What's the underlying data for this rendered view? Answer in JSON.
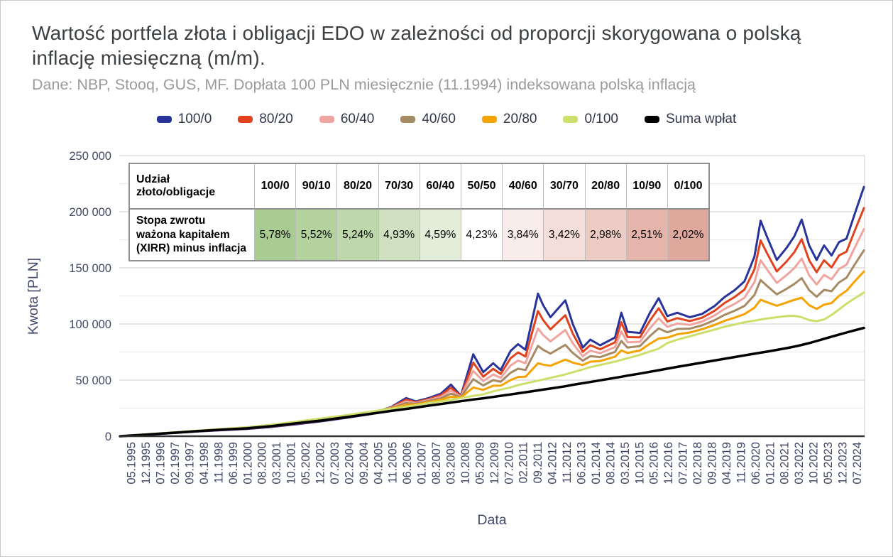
{
  "card": {
    "title": "Wartość portfela złota i obligacji EDO w zależności od proporcji skorygowana o polską inflację miesięczną (m/m).",
    "subtitle": "Dane: NBP, Stooq, GUS, MF. Dopłata 100 PLN miesięcznie (11.1994) indeksowana polską inflacją"
  },
  "colors": {
    "title_text": "#3c4043",
    "subtitle_text": "#9b9b9b",
    "axis_text": "#424867",
    "grid_major": "#cfcfcf",
    "grid_minor": "#e9e9e9",
    "axis_baseline": "#333333",
    "table_border_outer": "#8f8f8f",
    "table_border_inner": "#bdbdbd"
  },
  "legend": [
    {
      "label": "100/0",
      "color": "#28339c"
    },
    {
      "label": "80/20",
      "color": "#e2431e"
    },
    {
      "label": "60/40",
      "color": "#f0a4a0"
    },
    {
      "label": "40/60",
      "color": "#a68a64"
    },
    {
      "label": "20/80",
      "color": "#f5a300"
    },
    {
      "label": "0/100",
      "color": "#cede6b"
    },
    {
      "label": "Suma wpłat",
      "color": "#000000"
    }
  ],
  "table": {
    "header_label_line1": "Udział",
    "header_label_line2": "złoto/obligacje",
    "row_label_line1": "Stopa zwrotu",
    "row_label_line2": "ważona kapitałem",
    "row_label_line3": "(XIRR) minus inflacja",
    "columns": [
      "100/0",
      "90/10",
      "80/20",
      "70/30",
      "60/40",
      "50/50",
      "40/60",
      "30/70",
      "20/80",
      "10/90",
      "0/100"
    ],
    "values": [
      "5,78%",
      "5,52%",
      "5,24%",
      "4,93%",
      "4,59%",
      "4,23%",
      "3,84%",
      "3,42%",
      "2,98%",
      "2,51%",
      "2,02%"
    ],
    "cell_colors": [
      "#a9cc92",
      "#b3d29e",
      "#bed8ab",
      "#cfe1c0",
      "#e2edda",
      "#ffffff",
      "#f9edeb",
      "#f3ded9",
      "#edccc5",
      "#e5b4aa",
      "#dfa89d"
    ]
  },
  "axes": {
    "y_label": "Kwota [PLN]",
    "x_label": "Data",
    "y_ticks": [
      {
        "value": 0,
        "label": "0"
      },
      {
        "value": 50000,
        "label": "50 000"
      },
      {
        "value": 100000,
        "label": "100 000"
      },
      {
        "value": 150000,
        "label": "150 000"
      },
      {
        "value": 200000,
        "label": "200 000"
      },
      {
        "value": 250000,
        "label": "250 000"
      }
    ],
    "x_ticks": [
      "05.1995",
      "12.1995",
      "07.1996",
      "02.1997",
      "09.1997",
      "04.1998",
      "11.1998",
      "06.1999",
      "01.2000",
      "08.2000",
      "03.2001",
      "10.2001",
      "05.2002",
      "12.2002",
      "07.2003",
      "02.2004",
      "09.2004",
      "04.2005",
      "11.2005",
      "06.2006",
      "01.2007",
      "08.2007",
      "03.2008",
      "10.2008",
      "05.2009",
      "12.2009",
      "07.2010",
      "02.2011",
      "09.2011",
      "04.2012",
      "11.2012",
      "06.2013",
      "01.2014",
      "08.2014",
      "03.2015",
      "10.2015",
      "05.2016",
      "12.2016",
      "07.2017",
      "02.2018",
      "09.2018",
      "04.2019",
      "11.2019",
      "06.2020",
      "01.2021",
      "08.2021",
      "03.2022",
      "10.2022",
      "05.2023",
      "12.2023",
      "07.2024"
    ]
  },
  "chart_data": {
    "type": "line",
    "title": "Wartość portfela złota i obligacji EDO w zależności od proporcji skorygowana o polską inflację miesięczną (m/m).",
    "xlabel": "Data",
    "ylabel": "Kwota [PLN]",
    "xlim": [
      1994.87,
      2024.8
    ],
    "ylim": [
      0,
      250000
    ],
    "grid": "horizontal, major every 50000, minor every 25000",
    "legend_position": "top",
    "x_unit": "decimal year (monthly series 11.1994 - 2024)",
    "y_unit": "PLN",
    "x": [
      1994.9,
      1996,
      1997,
      1998,
      1999,
      2000,
      2001,
      2002,
      2003,
      2004,
      2005,
      2005.8,
      2006.4,
      2006.8,
      2007.3,
      2007.8,
      2008.2,
      2008.6,
      2009.1,
      2009.5,
      2009.9,
      2010.2,
      2010.6,
      2010.9,
      2011.2,
      2011.7,
      2011.9,
      2012.2,
      2012.8,
      2013.1,
      2013.5,
      2013.8,
      2014.2,
      2014.8,
      2015.05,
      2015.3,
      2015.8,
      2016.2,
      2016.55,
      2016.9,
      2017.3,
      2017.8,
      2018.3,
      2018.8,
      2019.2,
      2019.6,
      2020,
      2020.4,
      2020.65,
      2020.9,
      2021.3,
      2021.7,
      2022,
      2022.3,
      2022.6,
      2022.9,
      2023.2,
      2023.5,
      2023.8,
      2024.1,
      2024.4,
      2024.8
    ],
    "series": [
      {
        "name": "100/0",
        "color": "#28339c",
        "width": 3,
        "values": [
          0,
          1400,
          2800,
          4200,
          5400,
          6500,
          8300,
          10700,
          13300,
          16300,
          19800,
          26000,
          34000,
          31000,
          34000,
          38000,
          46000,
          36000,
          73000,
          57000,
          65000,
          59000,
          76000,
          82000,
          77000,
          127000,
          117000,
          106000,
          121000,
          100000,
          79000,
          86000,
          81000,
          88000,
          110000,
          93000,
          92000,
          110000,
          123000,
          107000,
          110000,
          106000,
          109000,
          116000,
          124000,
          130000,
          138000,
          160000,
          192000,
          178000,
          157000,
          168000,
          178000,
          193000,
          170000,
          157000,
          170000,
          161000,
          173000,
          176000,
          196000,
          222000
        ]
      },
      {
        "name": "80/20",
        "color": "#e2431e",
        "width": 3,
        "values": [
          0,
          1460,
          2900,
          4360,
          5620,
          6800,
          8680,
          11160,
          13800,
          16800,
          20240,
          25700,
          32460,
          30320,
          33100,
          36600,
          43300,
          35600,
          65600,
          53060,
          60000,
          55500,
          69500,
          74700,
          71000,
          111500,
          103700,
          95200,
          107800,
          91400,
          75100,
          81100,
          77500,
          83700,
          101600,
          88300,
          88100,
          103100,
          114000,
          102200,
          105200,
          102600,
          105600,
          111800,
          118700,
          123900,
          130700,
          148600,
          174400,
          163360,
          146800,
          155800,
          163860,
          175600,
          156700,
          146100,
          156800,
          150400,
          161000,
          164400,
          181300,
          203200
        ]
      },
      {
        "name": "60/40",
        "color": "#f0a4a0",
        "width": 3,
        "values": [
          0,
          1520,
          3000,
          4520,
          5840,
          7100,
          9060,
          11620,
          14300,
          17300,
          20680,
          25400,
          30920,
          29640,
          32200,
          35200,
          40600,
          35200,
          58200,
          49120,
          55000,
          52000,
          63000,
          67400,
          65000,
          96000,
          90400,
          84400,
          94600,
          82800,
          71200,
          76200,
          74000,
          79400,
          93200,
          83600,
          84200,
          96200,
          105000,
          97400,
          100400,
          99200,
          102200,
          107600,
          113400,
          117800,
          123400,
          137200,
          156800,
          148720,
          136600,
          143600,
          149720,
          158200,
          143400,
          135200,
          143600,
          139800,
          149000,
          152800,
          166600,
          184400
        ]
      },
      {
        "name": "40/60",
        "color": "#a68a64",
        "width": 3,
        "values": [
          0,
          1580,
          3100,
          4680,
          6060,
          7400,
          9440,
          12080,
          14800,
          17800,
          21120,
          25100,
          29380,
          28960,
          31300,
          33800,
          37900,
          34800,
          50800,
          45180,
          50000,
          48500,
          56500,
          60100,
          59000,
          80500,
          77100,
          73600,
          81400,
          74200,
          67300,
          71300,
          70500,
          75100,
          84800,
          78900,
          80300,
          89300,
          96000,
          92600,
          95600,
          95800,
          98800,
          103400,
          108100,
          111700,
          116100,
          125800,
          139200,
          134080,
          126400,
          131400,
          135580,
          140800,
          130100,
          124300,
          130400,
          129200,
          137000,
          141200,
          151900,
          165600
        ]
      },
      {
        "name": "20/80",
        "color": "#f5a300",
        "width": 3,
        "values": [
          0,
          1640,
          3200,
          4840,
          6280,
          7700,
          9820,
          12540,
          15300,
          18300,
          21560,
          24800,
          27840,
          28280,
          30400,
          32400,
          35200,
          34400,
          43400,
          41240,
          45000,
          45000,
          50000,
          52800,
          53000,
          65000,
          63800,
          62800,
          68200,
          65600,
          63400,
          66400,
          67000,
          70800,
          76400,
          74200,
          76400,
          82400,
          87000,
          87800,
          90800,
          92400,
          95400,
          99200,
          102800,
          105600,
          108800,
          114400,
          121600,
          119440,
          116200,
          119200,
          121440,
          123400,
          116800,
          113400,
          117200,
          118600,
          125000,
          129600,
          137200,
          146800
        ]
      },
      {
        "name": "0/100",
        "color": "#cede6b",
        "width": 3,
        "values": [
          0,
          1700,
          3300,
          5000,
          6500,
          8000,
          10200,
          13000,
          15800,
          18800,
          22000,
          24500,
          26300,
          27600,
          29500,
          31000,
          32500,
          34000,
          36000,
          37300,
          40000,
          41500,
          43500,
          45500,
          47000,
          49500,
          50500,
          52000,
          55000,
          57000,
          59500,
          61500,
          63500,
          66500,
          68000,
          69500,
          72500,
          75500,
          78000,
          83000,
          86000,
          89000,
          92000,
          95000,
          97500,
          99500,
          101500,
          103000,
          104000,
          104800,
          106000,
          107000,
          107300,
          106000,
          103500,
          102500,
          104000,
          108000,
          113000,
          118000,
          122500,
          128000
        ]
      },
      {
        "name": "Suma wpłat",
        "color": "#000000",
        "width": 3.5,
        "values": [
          0,
          1500,
          3000,
          4500,
          5800,
          7000,
          9000,
          11500,
          14000,
          17000,
          20000,
          22500,
          24300,
          25600,
          27200,
          28700,
          30000,
          31200,
          32700,
          33800,
          35000,
          36000,
          37200,
          38200,
          39200,
          40800,
          41500,
          42500,
          44500,
          45800,
          47200,
          48300,
          49800,
          52000,
          53000,
          54000,
          55800,
          57400,
          58800,
          60200,
          61800,
          63700,
          65600,
          67500,
          69000,
          70500,
          72000,
          73500,
          74400,
          75300,
          76900,
          78500,
          79800,
          81300,
          83000,
          84800,
          86800,
          88700,
          90600,
          92400,
          94200,
          96500
        ]
      }
    ],
    "annotation_table": {
      "title": "Udział złoto/obligacje",
      "metric": "Stopa zwrotu ważona kapitałem (XIRR) minus inflacja",
      "columns": [
        "100/0",
        "90/10",
        "80/20",
        "70/30",
        "60/40",
        "50/50",
        "40/60",
        "30/70",
        "20/80",
        "10/90",
        "0/100"
      ],
      "values_pct": [
        5.78,
        5.52,
        5.24,
        4.93,
        4.59,
        4.23,
        3.84,
        3.42,
        2.98,
        2.51,
        2.02
      ]
    }
  }
}
